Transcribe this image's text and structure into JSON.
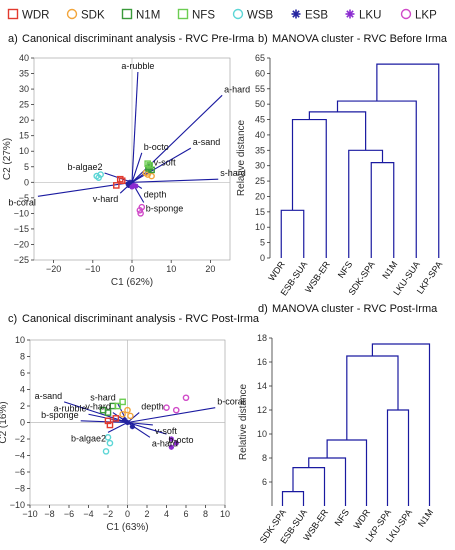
{
  "legend": [
    {
      "name": "WDR",
      "marker": "square",
      "color": "#e23a2e"
    },
    {
      "name": "SDK",
      "marker": "circle",
      "color": "#f2a53b"
    },
    {
      "name": "N1M",
      "marker": "square",
      "color": "#3a9a3a"
    },
    {
      "name": "NFS",
      "marker": "square",
      "color": "#6ccd52"
    },
    {
      "name": "WSB",
      "marker": "circle",
      "color": "#5cd6d6"
    },
    {
      "name": "ESB",
      "marker": "asterisk",
      "color": "#2424a0"
    },
    {
      "name": "LKU",
      "marker": "asterisk",
      "color": "#8b2bd0"
    },
    {
      "name": "LKP",
      "marker": "circle",
      "color": "#d04ac8"
    }
  ],
  "colors": {
    "vector": "#1a1aa0",
    "dendro": "#1a1aa0",
    "axis": "#333333"
  },
  "chart_data": [
    {
      "type": "scatter",
      "panel_letter": "a)",
      "title": "Canonical discriminant analysis - RVC Pre-Irma",
      "xlabel": "C1 (62%)",
      "ylabel": "C2 (27%)",
      "xlim": [
        -25,
        25
      ],
      "ylim": [
        -25,
        40
      ],
      "xticks": [
        -20,
        -10,
        0,
        10,
        20
      ],
      "yticks": [
        -25,
        -20,
        -15,
        -10,
        -5,
        0,
        5,
        10,
        15,
        20,
        25,
        30,
        35,
        40
      ],
      "vectors": [
        {
          "label": "a-rubble",
          "x": 1.5,
          "y": 35.5
        },
        {
          "label": "a-hard",
          "x": 23,
          "y": 28
        },
        {
          "label": "a-sand",
          "x": 15,
          "y": 11
        },
        {
          "label": "b-octo",
          "x": 2.5,
          "y": 9.5
        },
        {
          "label": "v-soft",
          "x": 5,
          "y": 4.5
        },
        {
          "label": "s-hard",
          "x": 22,
          "y": 1
        },
        {
          "label": "b-algae2",
          "x": -7,
          "y": 3
        },
        {
          "label": "depth",
          "x": 2.5,
          "y": -2
        },
        {
          "label": "b-coral",
          "x": -24,
          "y": -4.5
        },
        {
          "label": "v-hard",
          "x": -3,
          "y": -3.5
        },
        {
          "label": "b-sponge",
          "x": 3,
          "y": -6.5
        }
      ],
      "series": [
        {
          "name": "WDR",
          "points": [
            [
              -4,
              -1
            ],
            [
              -3,
              1
            ],
            [
              -2.5,
              0.5
            ]
          ]
        },
        {
          "name": "SDK",
          "points": [
            [
              4,
              2.5
            ],
            [
              5,
              2
            ],
            [
              3.5,
              3
            ]
          ]
        },
        {
          "name": "N1M",
          "points": [
            [
              4.5,
              5
            ],
            [
              5,
              4
            ],
            [
              4.2,
              4.5
            ]
          ]
        },
        {
          "name": "NFS",
          "points": [
            [
              4,
              6
            ],
            [
              4.5,
              5.5
            ]
          ]
        },
        {
          "name": "WSB",
          "points": [
            [
              -9,
              2
            ],
            [
              -8.5,
              1.5
            ],
            [
              -8,
              2.5
            ]
          ]
        },
        {
          "name": "ESB",
          "points": [
            [
              -1,
              -0.5
            ],
            [
              -0.5,
              0
            ],
            [
              -0.8,
              -1
            ]
          ]
        },
        {
          "name": "LKU",
          "points": [
            [
              0.5,
              -1
            ],
            [
              0,
              -1.5
            ],
            [
              1,
              -1.2
            ]
          ]
        },
        {
          "name": "LKP",
          "points": [
            [
              2.5,
              -8
            ],
            [
              2,
              -9
            ],
            [
              2.2,
              -10
            ]
          ]
        }
      ]
    },
    {
      "type": "dendrogram",
      "panel_letter": "b)",
      "title": "MANOVA cluster - RVC Before Irma",
      "ylabel": "Relative distance",
      "ylim": [
        0,
        65
      ],
      "yticks": [
        0,
        5,
        10,
        15,
        20,
        25,
        30,
        35,
        40,
        45,
        50,
        55,
        60,
        65
      ],
      "leaves": [
        "WDR",
        "ESB-SUA",
        "WSB-ER",
        "NFS",
        "SDK-SPA",
        "N1M",
        "LKU-SUA",
        "LKP-SPA"
      ],
      "merges": [
        {
          "left": 0,
          "right": 1,
          "height": 15.5
        },
        {
          "left": 4,
          "right": 5,
          "height": 31
        },
        {
          "left": 8,
          "right": 2,
          "height": 45
        },
        {
          "left": 3,
          "right": 9,
          "height": 35
        },
        {
          "left": 10,
          "right": 11,
          "height": 47.5
        },
        {
          "left": 12,
          "right": 6,
          "height": 51
        },
        {
          "left": 13,
          "right": 7,
          "height": 63
        }
      ]
    },
    {
      "type": "scatter",
      "panel_letter": "c)",
      "title": "Canonical discriminant analysis - RVC Post-Irma",
      "xlabel": "C1 (63%)",
      "ylabel": "C2 (16%)",
      "xlim": [
        -10,
        10
      ],
      "ylim": [
        -10,
        10
      ],
      "xticks": [
        -10,
        -8,
        -6,
        -4,
        -2,
        0,
        2,
        4,
        6,
        8,
        10
      ],
      "yticks": [
        -10,
        -8,
        -6,
        -4,
        -2,
        0,
        2,
        4,
        6,
        8,
        10
      ],
      "vectors": [
        {
          "label": "a-sand",
          "x": -6.5,
          "y": 2.5
        },
        {
          "label": "s-hard",
          "x": -1,
          "y": 2.3
        },
        {
          "label": "a-rubble",
          "x": -4,
          "y": 1
        },
        {
          "label": "v-hard",
          "x": -1.5,
          "y": 1.2
        },
        {
          "label": "b-sponge",
          "x": -4.8,
          "y": 0.2
        },
        {
          "label": "depth",
          "x": 1.2,
          "y": 1.2
        },
        {
          "label": "b-coral",
          "x": 9,
          "y": 1.8
        },
        {
          "label": "v-soft",
          "x": 2.6,
          "y": -0.3
        },
        {
          "label": "b-algae2",
          "x": -2,
          "y": -1.2
        },
        {
          "label": "a-hard",
          "x": 2.3,
          "y": -1.8
        },
        {
          "label": "b-octo",
          "x": 4,
          "y": -1.4
        }
      ],
      "series": [
        {
          "name": "WDR",
          "points": [
            [
              -2,
              0.2
            ],
            [
              -1.8,
              -0.3
            ],
            [
              -1.2,
              0.5
            ]
          ]
        },
        {
          "name": "SDK",
          "points": [
            [
              -0.5,
              1
            ],
            [
              0.3,
              0.8
            ],
            [
              0,
              1.5
            ]
          ]
        },
        {
          "name": "N1M",
          "points": [
            [
              -2.5,
              1.5
            ],
            [
              -2,
              1.2
            ],
            [
              -1.5,
              2
            ]
          ]
        },
        {
          "name": "NFS",
          "points": [
            [
              -1,
              2
            ],
            [
              -0.5,
              2.5
            ]
          ]
        },
        {
          "name": "WSB",
          "points": [
            [
              -2,
              -1.8
            ],
            [
              -1.8,
              -2.5
            ],
            [
              -2.2,
              -3.5
            ]
          ]
        },
        {
          "name": "ESB",
          "points": [
            [
              0,
              0
            ],
            [
              0.5,
              -0.5
            ],
            [
              -0.3,
              0.3
            ]
          ]
        },
        {
          "name": "LKU",
          "points": [
            [
              4.5,
              -2
            ],
            [
              4.5,
              -3
            ],
            [
              5,
              -2.5
            ]
          ]
        },
        {
          "name": "LKP",
          "points": [
            [
              5,
              1.5
            ],
            [
              6,
              3
            ],
            [
              4,
              1.8
            ]
          ]
        }
      ]
    },
    {
      "type": "dendrogram",
      "panel_letter": "d)",
      "title": "MANOVA cluster - RVC Post-Irma",
      "ylabel": "Relative distance",
      "ylim": [
        4,
        18
      ],
      "yticks": [
        6,
        8,
        10,
        12,
        14,
        16,
        18
      ],
      "leaves": [
        "SDK-SPA",
        "ESB-SUA",
        "WSB-ER",
        "NFS",
        "WDR",
        "LKP-SPA",
        "LKU-SPA",
        "N1M"
      ],
      "merges": [
        {
          "left": 0,
          "right": 1,
          "height": 5.2
        },
        {
          "left": 8,
          "right": 2,
          "height": 7.2
        },
        {
          "left": 9,
          "right": 3,
          "height": 8
        },
        {
          "left": 10,
          "right": 4,
          "height": 9.5
        },
        {
          "left": 5,
          "right": 6,
          "height": 12
        },
        {
          "left": 11,
          "right": 12,
          "height": 16.5
        },
        {
          "left": 13,
          "right": 7,
          "height": 17.5
        }
      ]
    }
  ]
}
